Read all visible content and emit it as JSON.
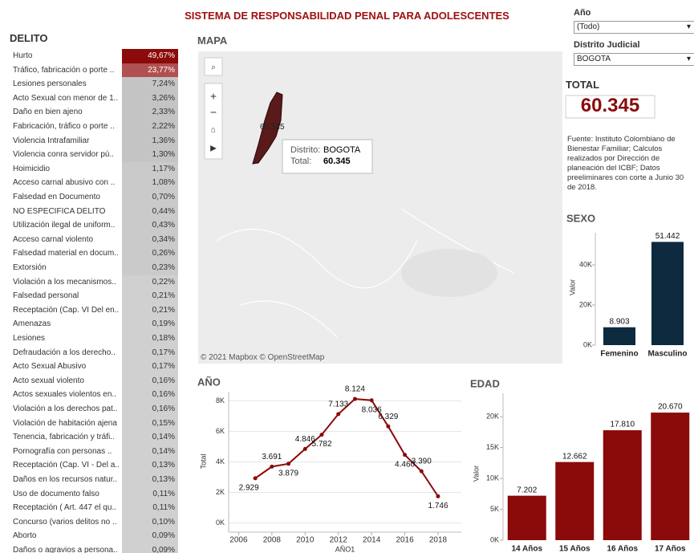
{
  "header": {
    "title": "SISTEMA DE RESPONSABILIDAD PENAL PARA  ADOLESCENTES"
  },
  "filters": [
    {
      "label": "Año",
      "value": "(Todo)"
    },
    {
      "label": "Distrito Judicial",
      "value": "BOGOTA"
    }
  ],
  "delito": {
    "title": "DELITO",
    "rows": [
      [
        "Hurto",
        "49,67%"
      ],
      [
        "Tráfico, fabricación o porte ..",
        "23,77%"
      ],
      [
        "Lesiones personales",
        "7,24%"
      ],
      [
        "Acto Sexual con menor de 1..",
        "3,26%"
      ],
      [
        "Daño en bien ajeno",
        "2,33%"
      ],
      [
        "Fabricación, tráfico o porte ..",
        "2,22%"
      ],
      [
        "Violencia Intrafamiliar",
        "1,36%"
      ],
      [
        "Violencia conra servidor pú..",
        "1,30%"
      ],
      [
        "Hoimicidio",
        "1,17%"
      ],
      [
        "Acceso carnal abusivo con ..",
        "1,08%"
      ],
      [
        "Falsedad en Documento",
        "0,70%"
      ],
      [
        "NO ESPECIFICA DELITO",
        "0,44%"
      ],
      [
        "Utilización ilegal de uniform..",
        "0,43%"
      ],
      [
        "Acceso carnal violento",
        "0,34%"
      ],
      [
        "Falsedad material en docum..",
        "0,26%"
      ],
      [
        "Extorsión",
        "0,23%"
      ],
      [
        "Violación a los mecanismos..",
        "0,22%"
      ],
      [
        "Falsedad personal",
        "0,21%"
      ],
      [
        "Receptación (Cap. VI Del en..",
        "0,21%"
      ],
      [
        "Amenazas",
        "0,19%"
      ],
      [
        "Lesiones",
        "0,18%"
      ],
      [
        "Defraudación a los derecho..",
        "0,17%"
      ],
      [
        "Acto Sexual Abusivo",
        "0,17%"
      ],
      [
        "Acto sexual violento",
        "0,16%"
      ],
      [
        "Actos sexuales violentos en..",
        "0,16%"
      ],
      [
        "Violación a los derechos pat..",
        "0,16%"
      ],
      [
        "Violación de habitación ajena",
        "0,15%"
      ],
      [
        "Tenencia, fabricación y tráfi..",
        "0,14%"
      ],
      [
        "Pornografía con personas ..",
        "0,14%"
      ],
      [
        "Receptación (Cap. VI - Del a..",
        "0,13%"
      ],
      [
        "Daños en los recursos natur..",
        "0,13%"
      ],
      [
        "Uso de documento falso",
        "0,11%"
      ],
      [
        "Receptación ( Art. 447 el qu..",
        "0,11%"
      ],
      [
        "Concurso (varios delitos no ..",
        "0,10%"
      ],
      [
        "Aborto",
        "0,09%"
      ],
      [
        "Daños o agravios a persona..",
        "0,09%"
      ]
    ]
  },
  "map": {
    "title": "MAPA",
    "label": "60.345",
    "tooltip": {
      "k1": "Distrito:",
      "v1": "BOGOTA",
      "k2": "Total:",
      "v2": "60.345"
    },
    "attribution": "© 2021 Mapbox © OpenStreetMap"
  },
  "total": {
    "title": "TOTAL",
    "value": "60.345"
  },
  "source": "Fuente: Instituto Colombiano de Bienestar Familiar; Calculos realizados por Dirección de planeación del ICBF; Datos preeliminares con corte a Junio 30 de 2018.",
  "chart_data": [
    {
      "type": "bar",
      "title": "SEXO",
      "ylabel": "Valor",
      "color": "#0d2a3f",
      "categories": [
        "Femenino",
        "Masculino"
      ],
      "values": [
        8903,
        51442
      ],
      "value_labels": [
        "8.903",
        "51.442"
      ],
      "ylim": [
        0,
        56000
      ],
      "yticks": [
        {
          "value": 0,
          "label": "0K"
        },
        {
          "value": 20000,
          "label": "20K"
        },
        {
          "value": 40000,
          "label": "40K"
        }
      ]
    },
    {
      "type": "line",
      "title": "AÑO",
      "xlabel": "AÑO1",
      "ylabel": "Total",
      "color": "#8b0a0a",
      "grid": true,
      "x": [
        2007,
        2008,
        2009,
        2010,
        2011,
        2012,
        2013,
        2014,
        2015,
        2016,
        2017,
        2018
      ],
      "values": [
        2929,
        3691,
        3879,
        4846,
        5782,
        7133,
        8124,
        8036,
        6329,
        4460,
        3390,
        1746
      ],
      "value_labels": [
        "2.929",
        "3.691",
        "3.879",
        "4.846",
        "5.782",
        "7.133",
        "8.124",
        "8.036",
        "6.329",
        "4.460",
        "3.390",
        "1.746"
      ],
      "xlim": [
        2005.4,
        2019.4
      ],
      "xticks": [
        2006,
        2008,
        2010,
        2012,
        2014,
        2016,
        2018
      ],
      "ylim": [
        -600,
        8600
      ],
      "yticks": [
        {
          "value": 0,
          "label": "0K"
        },
        {
          "value": 2000,
          "label": "2K"
        },
        {
          "value": 4000,
          "label": "4K"
        },
        {
          "value": 6000,
          "label": "6K"
        },
        {
          "value": 8000,
          "label": "8K"
        }
      ]
    },
    {
      "type": "bar",
      "title": "EDAD",
      "ylabel": "Valor",
      "color": "#8b0a0a",
      "categories": [
        "14 Años",
        "15 Años",
        "16 Años",
        "17 Años"
      ],
      "values": [
        7202,
        12662,
        17810,
        20670
      ],
      "value_labels": [
        "7.202",
        "12.662",
        "17.810",
        "20.670"
      ],
      "ylim": [
        0,
        23800
      ],
      "yticks": [
        {
          "value": 0,
          "label": "0K"
        },
        {
          "value": 5000,
          "label": "5K"
        },
        {
          "value": 10000,
          "label": "10K"
        },
        {
          "value": 15000,
          "label": "15K"
        },
        {
          "value": 20000,
          "label": "20K"
        }
      ]
    }
  ]
}
